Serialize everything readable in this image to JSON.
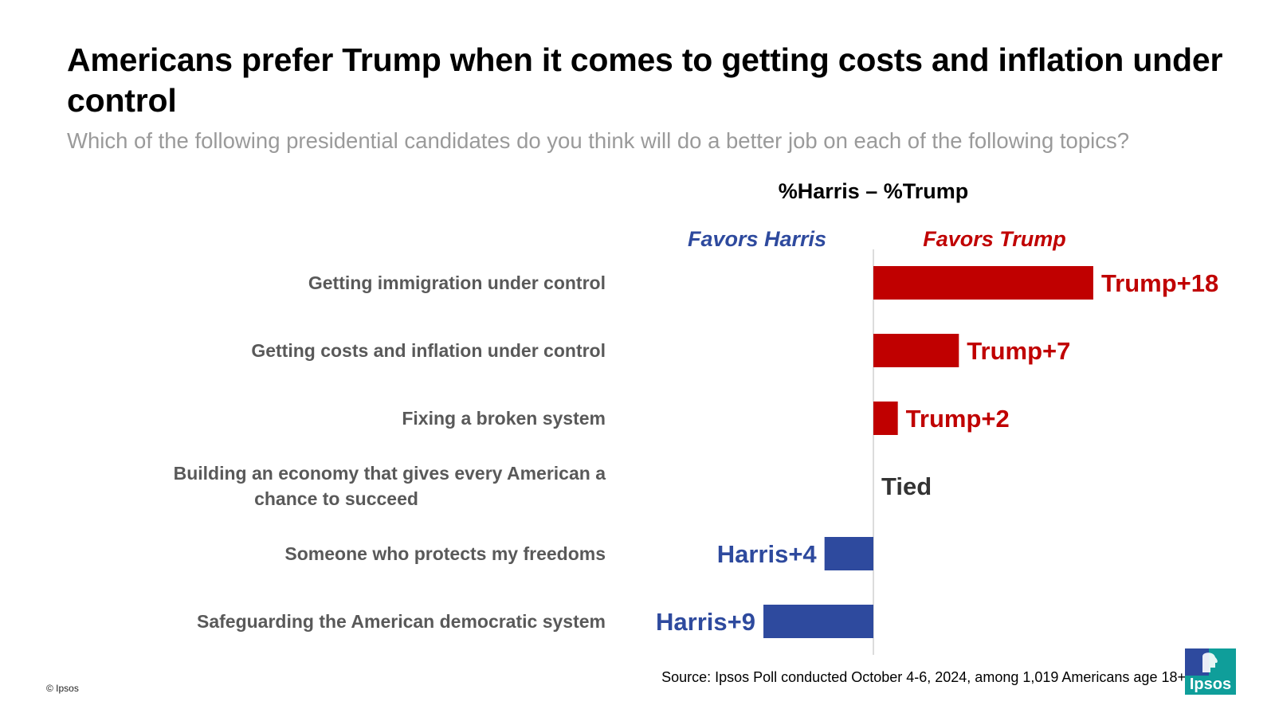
{
  "title": "Americans prefer Trump when it comes to getting costs and inflation under control",
  "subtitle": "Which of the following presidential candidates do you think will do a better job on each of the following topics?",
  "chart_data": {
    "type": "bar",
    "orientation": "horizontal-diverging",
    "metric_label": "%Harris – %Trump",
    "side_labels": {
      "left": "Favors Harris",
      "right": "Favors Trump"
    },
    "categories": [
      "Getting immigration under control",
      "Getting costs and inflation under control",
      "Fixing a broken system",
      "Building an economy that gives every American a chance to succeed",
      "Someone who protects my freedoms",
      "Safeguarding the American democratic system"
    ],
    "values": [
      -18,
      -7,
      -2,
      0,
      4,
      9
    ],
    "data_labels": [
      "Trump+18",
      "Trump+7",
      "Trump+2",
      "Tied",
      "Harris+4",
      "Harris+9"
    ],
    "colors": {
      "trump": "#c00000",
      "harris": "#2e4a9e",
      "tied": "#333333",
      "axis": "#d0d0d0",
      "category_text": "#595959"
    },
    "grid": false
  },
  "footer": {
    "copyright": "© Ipsos",
    "source": "Source: Ipsos Poll conducted October 4-6, 2024, among 1,019 Americans age 18+",
    "logo_text": "Ipsos"
  }
}
